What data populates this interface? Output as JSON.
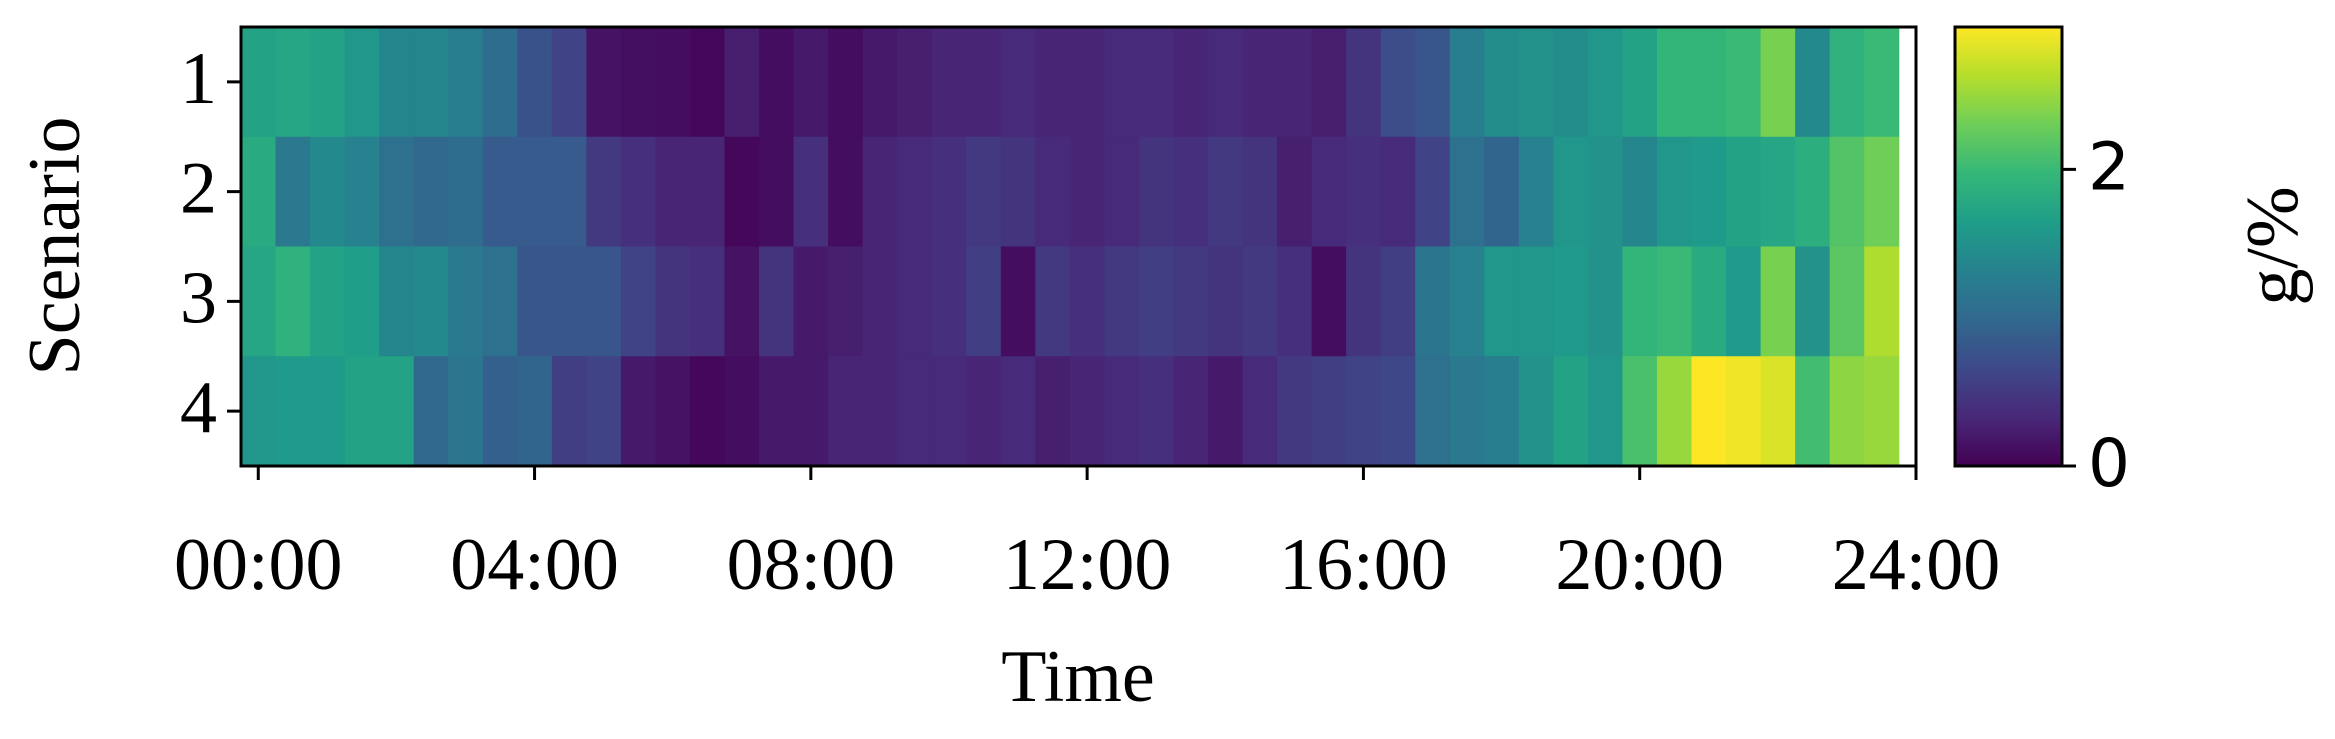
{
  "chart_data": {
    "type": "heatmap",
    "xlabel": "Time",
    "ylabel": "Scenario",
    "colorbar_label": "g/%",
    "colormap": "viridis",
    "categories": [
      "1",
      "2",
      "3",
      "4"
    ],
    "x": [
      0,
      0.5,
      1,
      1.5,
      2,
      2.5,
      3,
      3.5,
      4,
      4.5,
      5,
      5.5,
      6,
      6.5,
      7,
      7.5,
      8,
      8.5,
      9,
      9.5,
      10,
      10.5,
      11,
      11.5,
      12,
      12.5,
      13,
      13.5,
      14,
      14.5,
      15,
      15.5,
      16,
      16.5,
      17,
      17.5,
      18,
      18.5,
      19,
      19.5,
      20,
      20.5,
      21,
      21.5,
      22,
      22.5,
      23,
      23.5
    ],
    "values": [
      [
        1.7,
        1.75,
        1.7,
        1.55,
        1.35,
        1.35,
        1.25,
        1.05,
        0.75,
        0.6,
        0.15,
        0.12,
        0.1,
        0.05,
        0.25,
        0.1,
        0.2,
        0.1,
        0.2,
        0.25,
        0.3,
        0.3,
        0.35,
        0.3,
        0.3,
        0.35,
        0.35,
        0.3,
        0.35,
        0.3,
        0.3,
        0.25,
        0.45,
        0.7,
        0.8,
        1.25,
        1.45,
        1.5,
        1.45,
        1.55,
        1.7,
        1.95,
        1.95,
        2.0,
        2.35,
        1.4,
        1.9,
        2.0
      ],
      [
        1.8,
        1.2,
        1.4,
        1.3,
        1.1,
        1.0,
        1.05,
        0.85,
        0.85,
        0.85,
        0.5,
        0.4,
        0.3,
        0.3,
        0.05,
        0.1,
        0.4,
        0.1,
        0.3,
        0.35,
        0.4,
        0.5,
        0.45,
        0.35,
        0.3,
        0.35,
        0.45,
        0.4,
        0.5,
        0.45,
        0.25,
        0.35,
        0.4,
        0.35,
        0.6,
        1.1,
        0.95,
        1.3,
        1.55,
        1.5,
        1.35,
        1.55,
        1.6,
        1.7,
        1.75,
        1.85,
        2.15,
        2.3
      ],
      [
        1.75,
        1.9,
        1.7,
        1.65,
        1.35,
        1.4,
        1.2,
        1.1,
        0.8,
        0.8,
        0.8,
        0.6,
        0.45,
        0.4,
        0.15,
        0.45,
        0.2,
        0.25,
        0.3,
        0.35,
        0.4,
        0.55,
        0.1,
        0.5,
        0.4,
        0.5,
        0.55,
        0.5,
        0.45,
        0.5,
        0.4,
        0.1,
        0.45,
        0.55,
        1.15,
        1.3,
        1.55,
        1.55,
        1.6,
        1.5,
        1.95,
        2.0,
        1.8,
        1.6,
        2.35,
        1.5,
        2.2,
        2.6
      ],
      [
        1.55,
        1.6,
        1.6,
        1.7,
        1.7,
        1.0,
        1.15,
        0.9,
        0.95,
        0.55,
        0.6,
        0.2,
        0.15,
        0.05,
        0.1,
        0.2,
        0.2,
        0.3,
        0.3,
        0.35,
        0.35,
        0.3,
        0.35,
        0.25,
        0.3,
        0.35,
        0.4,
        0.3,
        0.2,
        0.35,
        0.5,
        0.55,
        0.6,
        0.65,
        1.1,
        1.2,
        1.25,
        1.5,
        1.7,
        1.55,
        2.1,
        2.5,
        2.96,
        2.9,
        2.8,
        2.05,
        2.45,
        2.5
      ]
    ],
    "xlim": [
      -0.25,
      24
    ],
    "xticks": [
      {
        "value": 0,
        "label": "00:00"
      },
      {
        "value": 4,
        "label": "04:00"
      },
      {
        "value": 8,
        "label": "08:00"
      },
      {
        "value": 12,
        "label": "12:00"
      },
      {
        "value": 16,
        "label": "16:00"
      },
      {
        "value": 20,
        "label": "20:00"
      },
      {
        "value": 24,
        "label": "24:00"
      }
    ],
    "clim": [
      0,
      2.96
    ],
    "cticks": [
      0,
      2
    ]
  }
}
